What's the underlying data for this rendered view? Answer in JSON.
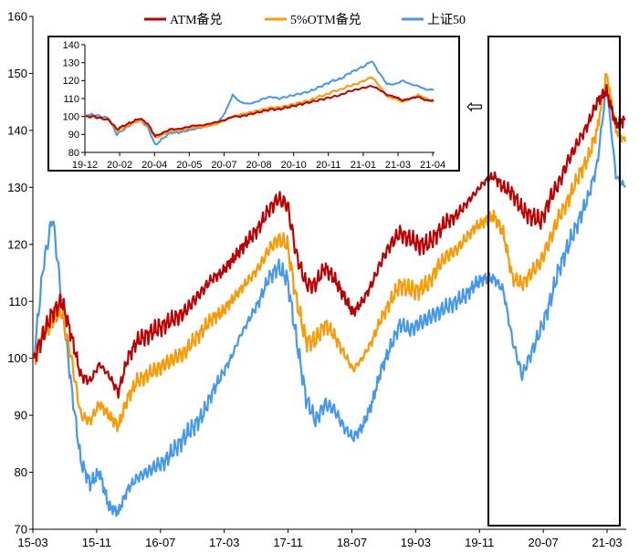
{
  "chart_data": [
    {
      "type": "line",
      "name": "main",
      "ylim": [
        70,
        160
      ],
      "yticks": [
        70,
        80,
        90,
        100,
        110,
        120,
        130,
        140,
        150,
        160
      ],
      "x_tick_labels": [
        "15-03",
        "15-11",
        "16-07",
        "17-03",
        "17-11",
        "18-07",
        "19-03",
        "19-11",
        "20-07",
        "21-03"
      ],
      "series": [
        {
          "name": "ATM备兑",
          "color": "#c00000",
          "values": [
            100,
            104,
            108,
            110,
            104,
            97,
            96,
            99,
            97,
            94,
            100,
            103,
            104,
            105,
            106,
            107,
            108,
            110,
            112,
            114,
            115,
            117,
            119,
            121,
            123,
            126,
            128,
            127,
            118,
            113,
            113,
            116,
            114,
            111,
            108,
            110,
            113,
            117,
            120,
            122,
            121,
            120,
            120,
            122,
            124,
            125,
            127,
            129,
            131,
            132,
            130,
            129,
            126,
            125,
            124,
            128,
            131,
            135,
            138,
            141,
            145,
            147,
            141,
            142
          ]
        },
        {
          "name": "5%OTM备兑",
          "color": "#ff9900",
          "values": [
            100,
            104,
            107,
            108,
            100,
            90,
            89,
            92,
            90,
            88,
            93,
            96,
            97,
            98,
            99,
            100,
            101,
            103,
            105,
            107,
            108,
            110,
            112,
            114,
            116,
            119,
            121,
            120,
            110,
            103,
            103,
            106,
            104,
            101,
            98,
            100,
            103,
            107,
            110,
            113,
            112,
            112,
            113,
            116,
            118,
            119,
            121,
            123,
            124,
            125,
            122,
            114,
            113,
            115,
            117,
            121,
            125,
            128,
            132,
            135,
            140,
            150,
            140,
            138
          ]
        },
        {
          "name": "上证50",
          "color": "#4499ee",
          "values": [
            100,
            116,
            125,
            110,
            95,
            82,
            78,
            80,
            74,
            73,
            77,
            79,
            80,
            81,
            82,
            84,
            86,
            88,
            90,
            94,
            97,
            100,
            104,
            107,
            110,
            114,
            116,
            114,
            103,
            93,
            89,
            92,
            91,
            88,
            86,
            88,
            92,
            98,
            102,
            106,
            105,
            106,
            107,
            108,
            109,
            110,
            111,
            113,
            114,
            114,
            112,
            103,
            97,
            101,
            105,
            110,
            116,
            120,
            124,
            128,
            134,
            148,
            132,
            130
          ]
        }
      ]
    },
    {
      "type": "line",
      "name": "inset",
      "ylim": [
        80,
        140
      ],
      "yticks": [
        80,
        90,
        100,
        110,
        120,
        130,
        140
      ],
      "x_tick_labels": [
        "19-12",
        "20-02",
        "20-04",
        "20-05",
        "20-07",
        "20-08",
        "20-10",
        "20-11",
        "21-01",
        "21-03",
        "21-04"
      ],
      "series": [
        {
          "name": "ATM备兑",
          "color": "#c00000",
          "values": [
            100,
            100,
            99,
            98,
            93,
            95,
            97,
            99,
            96,
            89,
            91,
            93,
            93,
            94,
            95,
            95,
            96,
            97,
            98,
            100,
            100,
            101,
            102,
            103,
            104,
            104,
            105,
            106,
            107,
            108,
            109,
            110,
            111,
            112,
            114,
            115,
            116,
            117,
            115,
            112,
            111,
            109,
            110,
            111,
            109,
            109
          ]
        },
        {
          "name": "5%OTM备兑",
          "color": "#ff9900",
          "values": [
            100,
            100,
            99,
            98,
            92,
            94,
            96,
            98,
            95,
            88,
            90,
            92,
            92,
            93,
            94,
            94,
            95,
            96,
            98,
            100,
            101,
            102,
            103,
            104,
            105,
            105,
            106,
            107,
            108,
            109,
            111,
            112,
            114,
            115,
            117,
            118,
            120,
            122,
            117,
            111,
            110,
            108,
            110,
            112,
            110,
            108
          ]
        },
        {
          "name": "上证50",
          "color": "#4499ee",
          "values": [
            101,
            101,
            100,
            99,
            90,
            93,
            96,
            98,
            94,
            84,
            88,
            91,
            91,
            92,
            93,
            94,
            95,
            96,
            102,
            112,
            108,
            107,
            108,
            110,
            111,
            110,
            111,
            112,
            113,
            114,
            116,
            118,
            120,
            121,
            124,
            126,
            128,
            131,
            124,
            118,
            118,
            120,
            118,
            117,
            115,
            115
          ]
        }
      ]
    }
  ],
  "legend": {
    "items": [
      {
        "label": "ATM备兑",
        "color": "#c00000"
      },
      {
        "label": "5%OTM备兑",
        "color": "#ff9900"
      },
      {
        "label": "上证50",
        "color": "#4499ee"
      }
    ]
  },
  "annotation": {
    "arrow_symbol": "⇦"
  }
}
